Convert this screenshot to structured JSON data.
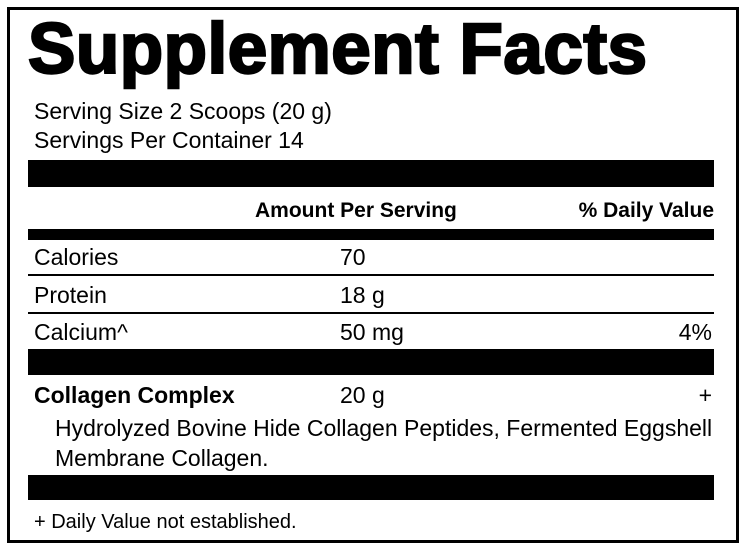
{
  "header": {
    "title": "Supplement Facts"
  },
  "serving": {
    "size": "Serving Size 2 Scoops (20 g)",
    "servings": "Servings Per Container 14"
  },
  "columns": {
    "amount": "Amount Per Serving",
    "daily": "% Daily Value"
  },
  "rows": [
    {
      "label": "Calories",
      "amount": "70"
    },
    {
      "label": "Protein",
      "amount": "18 g"
    },
    {
      "label": "Calcium^",
      "amount": "50 mg",
      "daily": "4%"
    }
  ],
  "blend": {
    "name": "Collagen Complex",
    "amount": "20 g",
    "daily": "+",
    "ingredients": "Hydrolyzed Bovine Hide Collagen Peptides, Fermented Eggshell Membrane Collagen."
  },
  "footnote": "+ Daily Value not established."
}
